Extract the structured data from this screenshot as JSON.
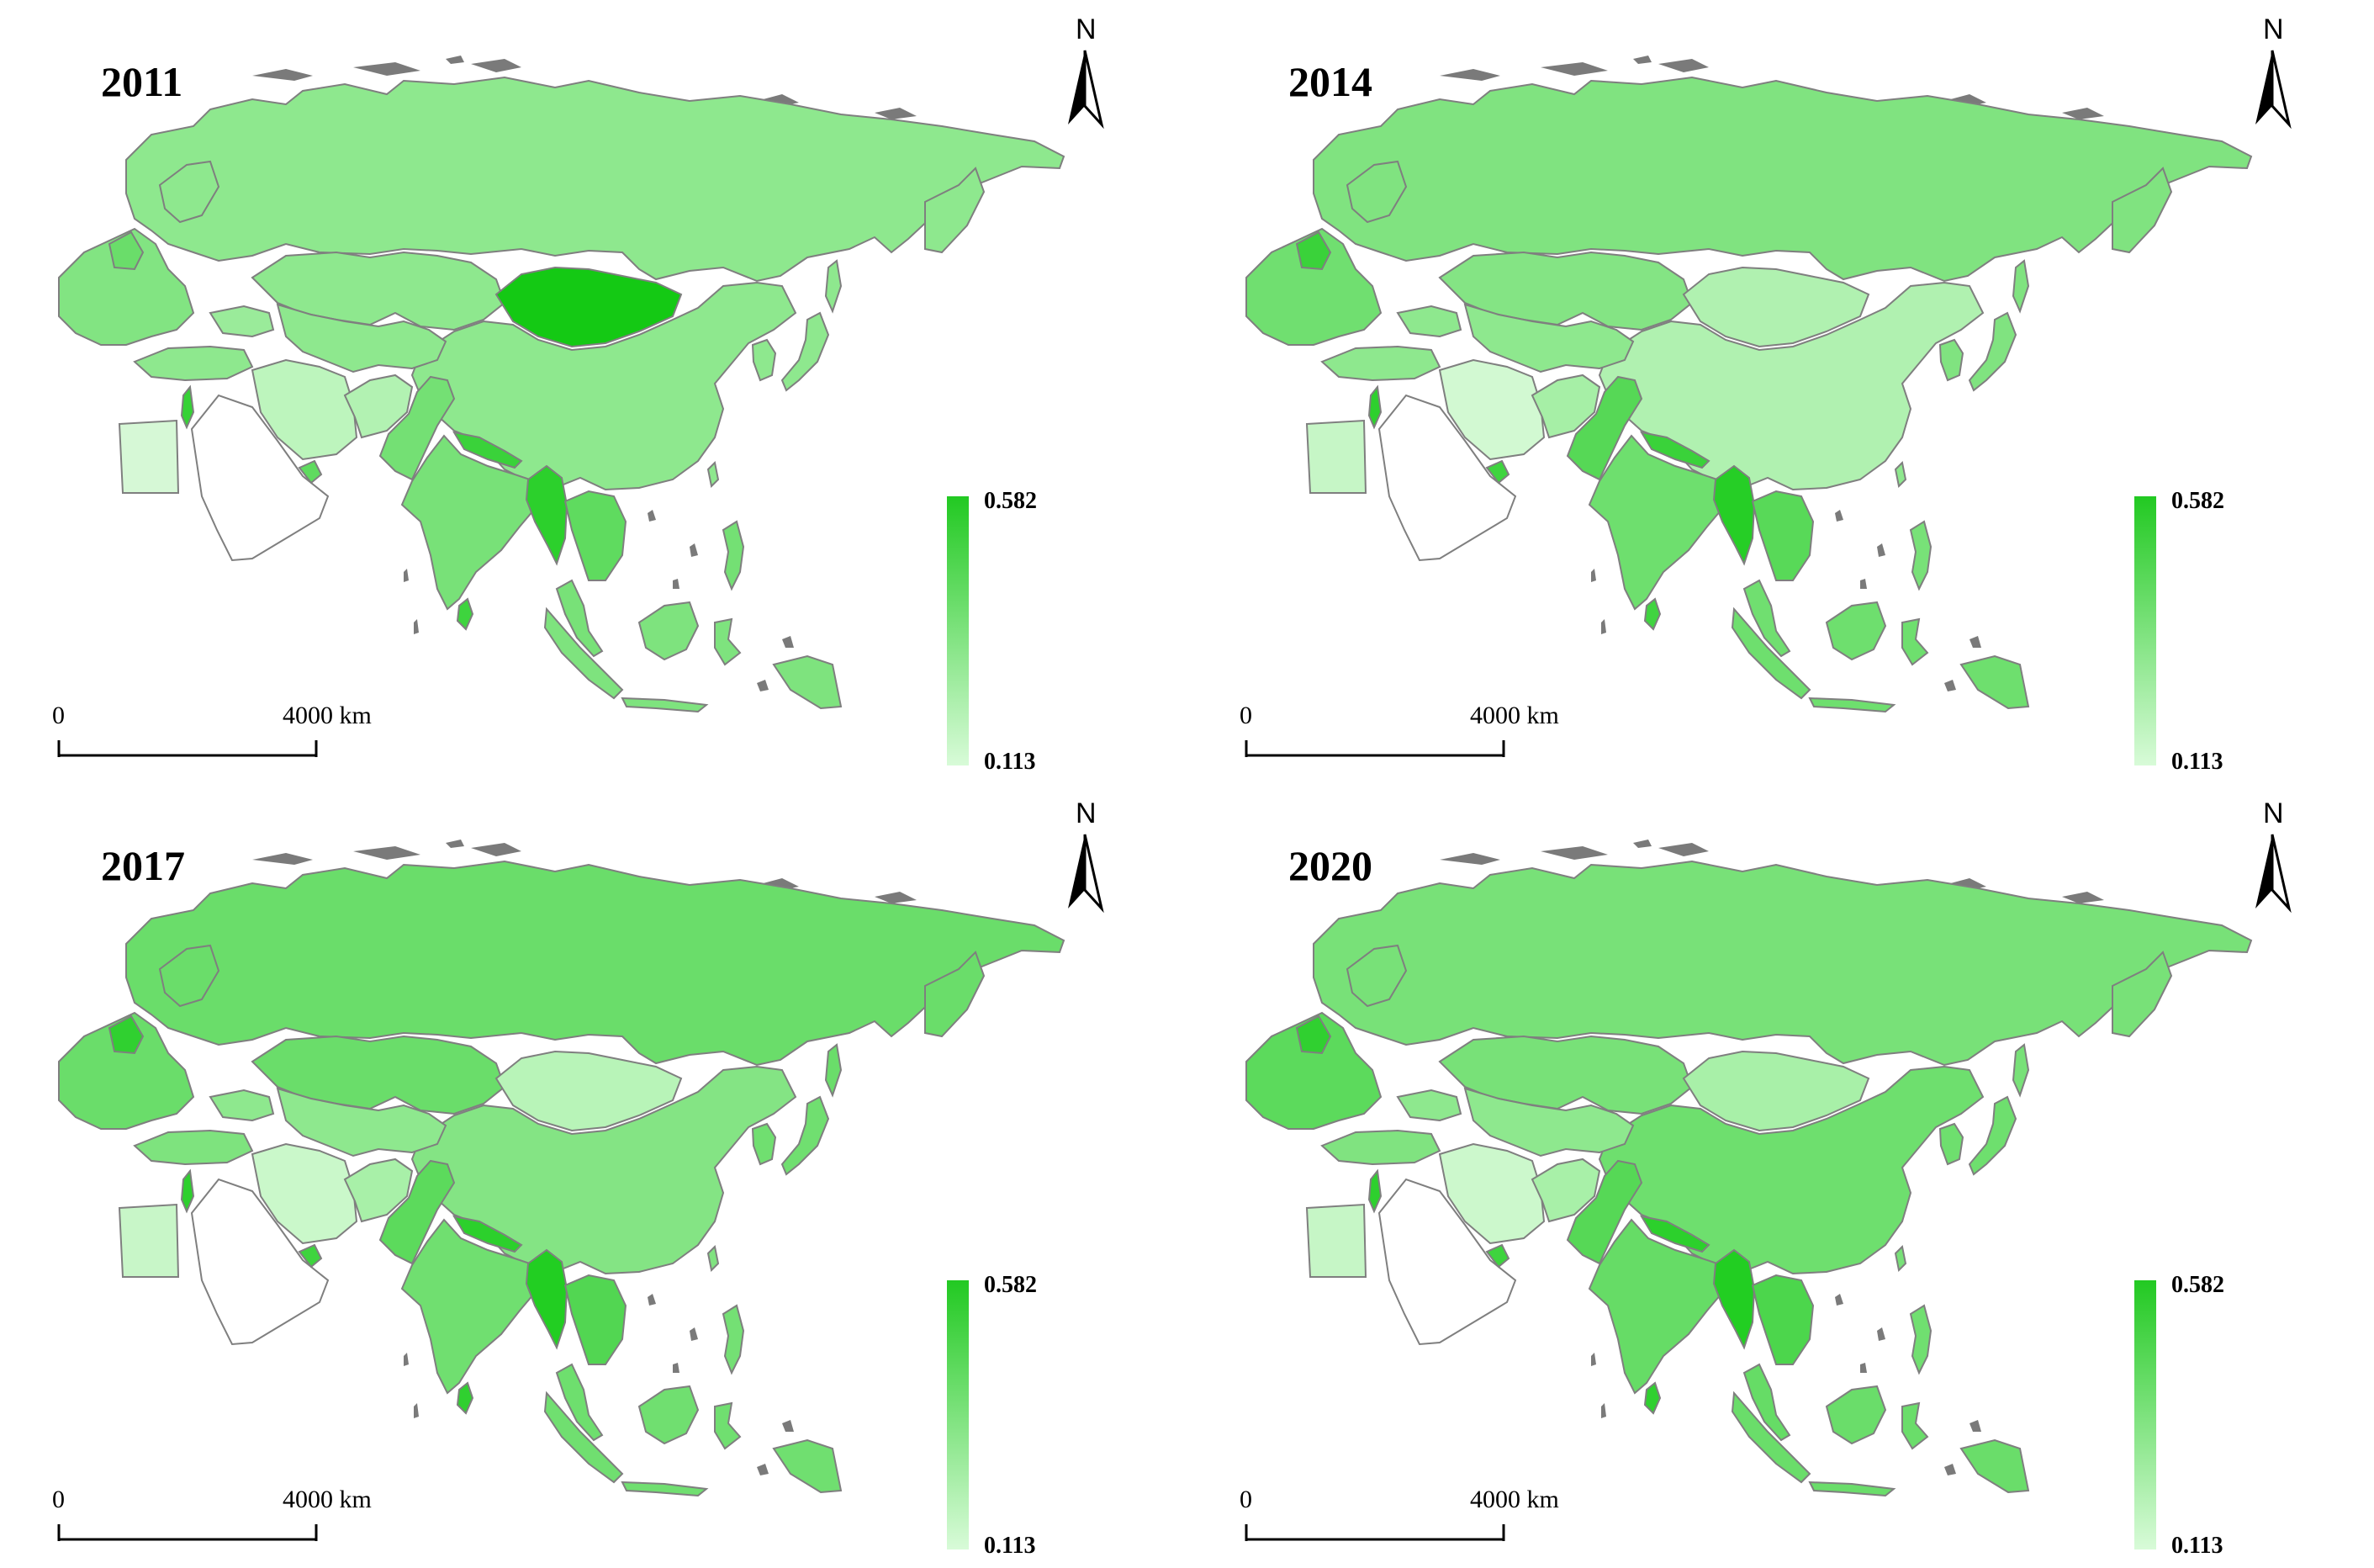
{
  "figure": {
    "legend": {
      "max_label": "0.582",
      "min_label": "0.113",
      "max_color": "#22c922",
      "min_color": "#d8fbd8"
    },
    "scale_bar": {
      "zero_label": "0",
      "distance_label": "4000 km"
    },
    "north_arrow": {
      "letter": "N",
      "icon": "north-arrow-icon"
    },
    "border_color": "#7f7f7f",
    "island_color": "#7a7a7a"
  },
  "panels": [
    {
      "year": "2011",
      "fills": {
        "russia": "#8ee88e",
        "china": "#8ee88e",
        "mongolia": "#14c914",
        "kazakhstan": "#8ee88e",
        "central_asia": "#8ee88e",
        "iran": "#bdf5bd",
        "afghanistan": "#b2f2b2",
        "pakistan": "#74e074",
        "india": "#78e178",
        "sri_lanka": "#3ed43e",
        "myanmar": "#2cd02c",
        "mainland_sea": "#5fdb5f",
        "indonesia": "#7ee37e",
        "philippines": "#74e074",
        "europe": "#82e482",
        "poland": "#6add6a",
        "turkey": "#8ee88e",
        "caucasus": "#9aeb9a",
        "egypt": "#d6f8d6",
        "israel": "#36d236",
        "uae": "#5fdb5f",
        "nepal_band": "#3ad23a",
        "korea": "#8ee88e",
        "japan": "#8ee88e",
        "taiwan": "#8ee88e",
        "malaysia": "#78e178"
      }
    },
    {
      "year": "2014",
      "fills": {
        "russia": "#80e380",
        "china": "#b0f1b0",
        "mongolia": "#b0f1b0",
        "kazakhstan": "#84e484",
        "central_asia": "#8ee88e",
        "iran": "#d2f9d2",
        "afghanistan": "#a6ef a6",
        "pakistan": "#56d856",
        "india": "#6edf6e",
        "sri_lanka": "#40d440",
        "myanmar": "#26ce26",
        "mainland_sea": "#58d958",
        "indonesia": "#6edf6e",
        "philippines": "#78e178",
        "europe": "#70df70",
        "poland": "#3ad23a",
        "turkey": "#8ee88e",
        "caucasus": "#8ee88e",
        "egypt": "#c6f6c6",
        "israel": "#2ed02e",
        "uae": "#3ed43e",
        "nepal_band": "#3ad23a",
        "korea": "#80e380",
        "japan": "#80e380",
        "taiwan": "#8ee88e",
        "malaysia": "#70df70"
      }
    },
    {
      "year": "2017",
      "fills": {
        "russia": "#6add6a",
        "china": "#84e484",
        "mongolia": "#b8f4b8",
        "kazakhstan": "#6add6a",
        "central_asia": "#8ee88e",
        "iran": "#caf8ca",
        "afghanistan": "#a8f0a8",
        "pakistan": "#5cda5c",
        "india": "#70df70",
        "sri_lanka": "#30d030",
        "myanmar": "#22ce22",
        "mainland_sea": "#52d652",
        "indonesia": "#70df70",
        "philippines": "#74e074",
        "europe": "#6add6a",
        "poland": "#30d030",
        "turkey": "#7ee37e",
        "caucasus": "#8ee88e",
        "egypt": "#c8f6c8",
        "israel": "#2ed02e",
        "uae": "#3ed43e",
        "nepal_band": "#2cd02c",
        "korea": "#70df70",
        "japan": "#70df70",
        "taiwan": "#80e380",
        "malaysia": "#6edf6e"
      }
    },
    {
      "year": "2020",
      "fills": {
        "russia": "#78e178",
        "china": "#6edf6e",
        "mongolia": "#a8f0a8",
        "kazakhstan": "#78e178",
        "central_asia": "#8ee88e",
        "iran": "#ccf8cc",
        "afghanistan": "#a8f0a8",
        "pakistan": "#56d856",
        "india": "#66dc66",
        "sri_lanka": "#30d030",
        "myanmar": "#22ce22",
        "mainland_sea": "#4cd64c",
        "indonesia": "#6add6a",
        "philippines": "#70df70",
        "europe": "#5cda5c",
        "poland": "#30d030",
        "turkey": "#80e380",
        "caucasus": "#8ee88e",
        "egypt": "#c6f6c6",
        "israel": "#2ed02e",
        "uae": "#3ed43e",
        "nepal_band": "#2cd02c",
        "korea": "#6edf6e",
        "japan": "#6edf6e",
        "taiwan": "#78e178",
        "malaysia": "#66dc66"
      }
    }
  ]
}
